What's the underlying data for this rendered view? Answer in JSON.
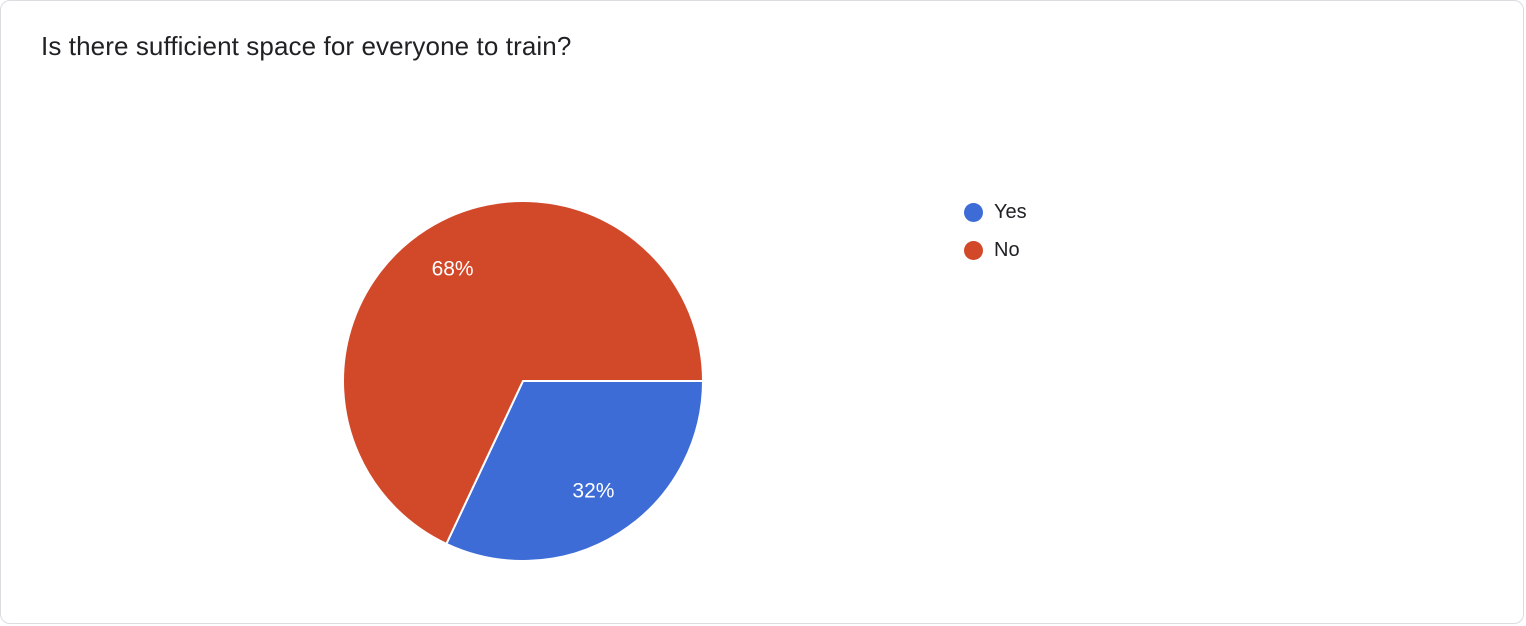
{
  "page": {
    "title": "Is there sufficient space for everyone to train?"
  },
  "chart_data": {
    "type": "pie",
    "title": "Is there sufficient space for everyone to train?",
    "labels": [
      "Yes",
      "No"
    ],
    "values": [
      32,
      68
    ],
    "value_labels": [
      "32%",
      "68%"
    ],
    "colors": [
      "#3d6cd7",
      "#d2492a"
    ],
    "start_angle_deg": 0,
    "legend_position": "right",
    "slice_label_color": "#ffffff",
    "slice_border_color": "#ffffff"
  }
}
